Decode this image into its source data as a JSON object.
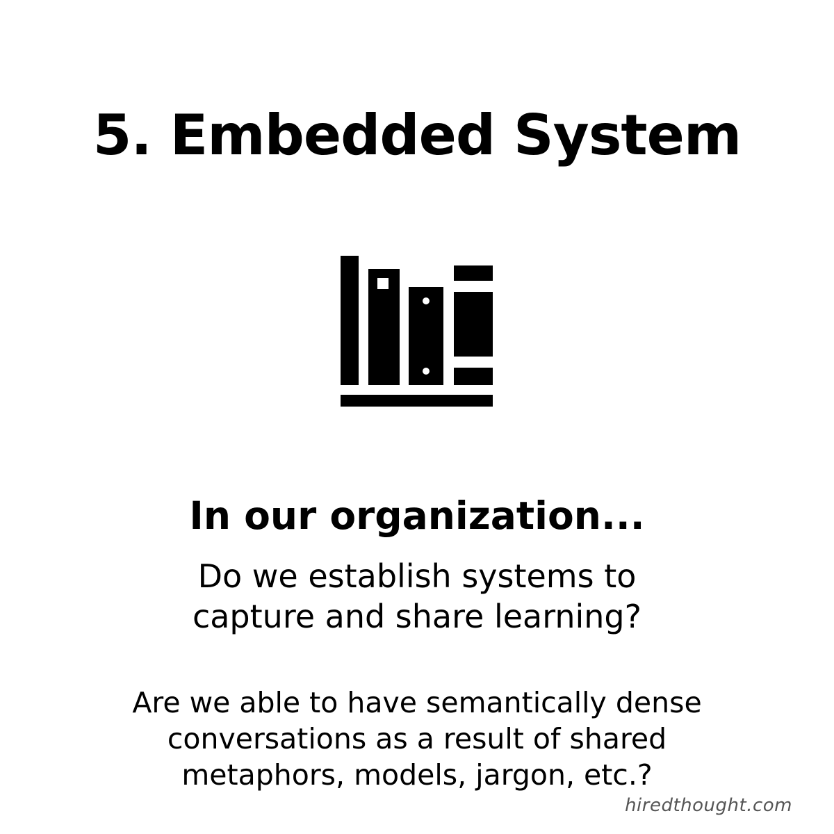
{
  "title": "5. Embedded System",
  "icon": "bookshelf-icon",
  "subheading": "In our organization...",
  "questions": [
    {
      "lines": [
        "Do we establish systems to",
        "capture and share learning?"
      ]
    },
    {
      "lines": [
        "Are we able to have semantically dense",
        "conversations as a result of shared",
        "metaphors, models, jargon, etc.?"
      ]
    }
  ],
  "watermark": "hiredthought.com",
  "colors": {
    "text": "#000000",
    "background": "#ffffff",
    "watermark": "#555555"
  }
}
